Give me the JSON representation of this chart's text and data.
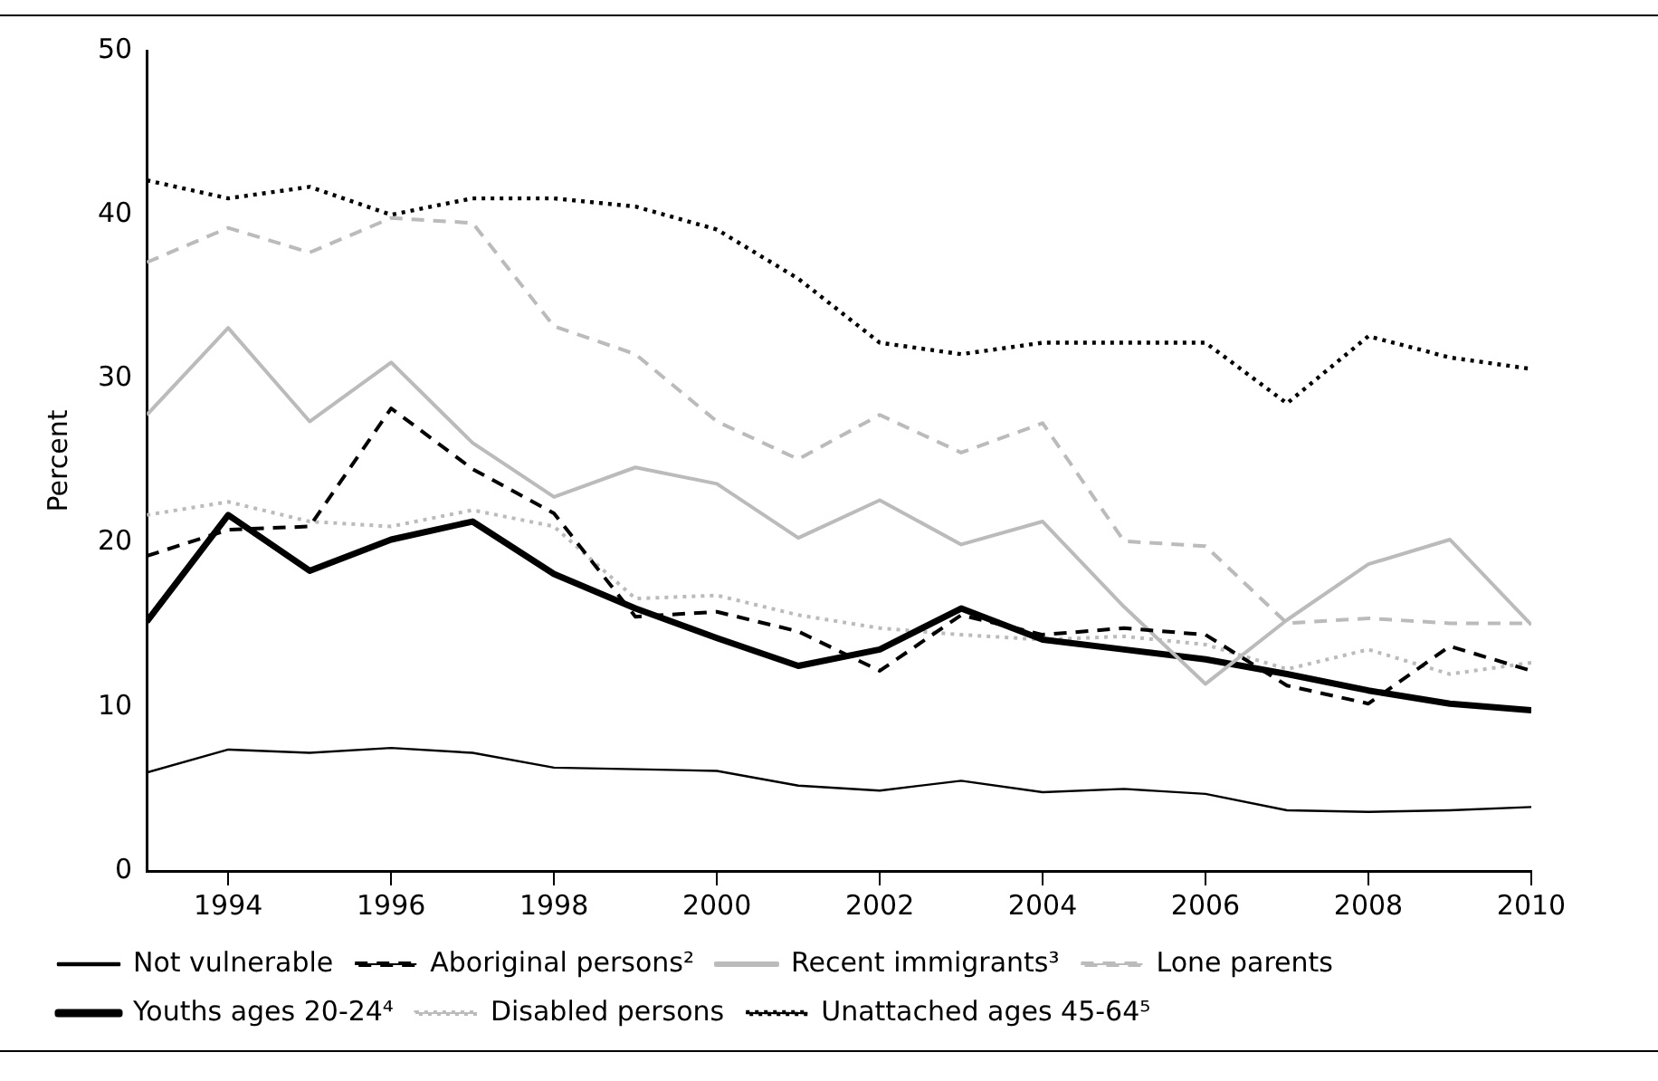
{
  "chart_data": {
    "type": "line",
    "ylabel": "Percent",
    "x": [
      1993,
      1994,
      1995,
      1996,
      1997,
      1998,
      1999,
      2000,
      2001,
      2002,
      2003,
      2004,
      2005,
      2006,
      2007,
      2008,
      2009,
      2010
    ],
    "xlim": [
      1993,
      2010
    ],
    "xticks": [
      1994,
      1996,
      1998,
      2000,
      2002,
      2004,
      2006,
      2008,
      2010
    ],
    "ylim": [
      0,
      50
    ],
    "yticks": [
      0,
      10,
      20,
      30,
      40,
      50
    ],
    "grid": false,
    "legend": "bottom",
    "marker": "none",
    "series": [
      {
        "name": "Not vulnerable",
        "color": "#000000",
        "line_style": "solid",
        "values": [
          6.0,
          7.4,
          7.2,
          7.5,
          7.2,
          6.3,
          6.2,
          6.1,
          5.2,
          4.9,
          5.5,
          4.8,
          5.0,
          4.7,
          3.7,
          3.6,
          3.7,
          3.9
        ]
      },
      {
        "name": "Aboriginal persons²",
        "color": "#000000",
        "line_style": "dashed",
        "values": [
          19.2,
          20.8,
          21.0,
          28.2,
          24.5,
          21.8,
          15.5,
          15.8,
          14.6,
          12.2,
          15.6,
          14.4,
          14.8,
          14.4,
          11.3,
          10.2,
          13.7,
          12.2
        ]
      },
      {
        "name": "Recent immigrants³",
        "color": "#bbbbbb",
        "line_style": "solid",
        "values": [
          27.8,
          33.1,
          27.4,
          31.0,
          26.1,
          22.8,
          24.6,
          23.6,
          20.3,
          22.6,
          19.9,
          21.3,
          16.1,
          11.4,
          15.3,
          18.7,
          20.2,
          15.0
        ]
      },
      {
        "name": "Lone parents",
        "color": "#bbbbbb",
        "line_style": "dashed",
        "values": [
          37.1,
          39.2,
          37.7,
          39.8,
          39.5,
          33.2,
          31.5,
          27.4,
          25.1,
          27.8,
          25.5,
          27.3,
          20.1,
          19.8,
          15.1,
          15.4,
          15.1,
          15.1
        ]
      },
      {
        "name": "Youths ages 20-24⁴",
        "color": "#000000",
        "line_style": "solid",
        "values": [
          15.2,
          21.7,
          18.3,
          20.2,
          21.3,
          18.1,
          16.0,
          14.2,
          12.5,
          13.5,
          16.0,
          14.1,
          13.5,
          12.9,
          12.0,
          11.0,
          10.2,
          9.8
        ]
      },
      {
        "name": "Disabled persons",
        "color": "#bbbbbb",
        "line_style": "dotted",
        "values": [
          21.7,
          22.5,
          21.3,
          21.0,
          22.0,
          21.0,
          16.6,
          16.8,
          15.6,
          14.8,
          14.4,
          14.1,
          14.3,
          13.8,
          12.3,
          13.5,
          12.0,
          12.7
        ]
      },
      {
        "name": "Unattached ages 45-64⁵",
        "color": "#000000",
        "line_style": "dotted",
        "values": [
          42.1,
          41.0,
          41.7,
          40.0,
          41.0,
          41.0,
          40.5,
          39.1,
          36.1,
          32.2,
          31.5,
          32.2,
          32.2,
          32.2,
          28.5,
          32.6,
          31.3,
          30.6
        ]
      }
    ]
  }
}
